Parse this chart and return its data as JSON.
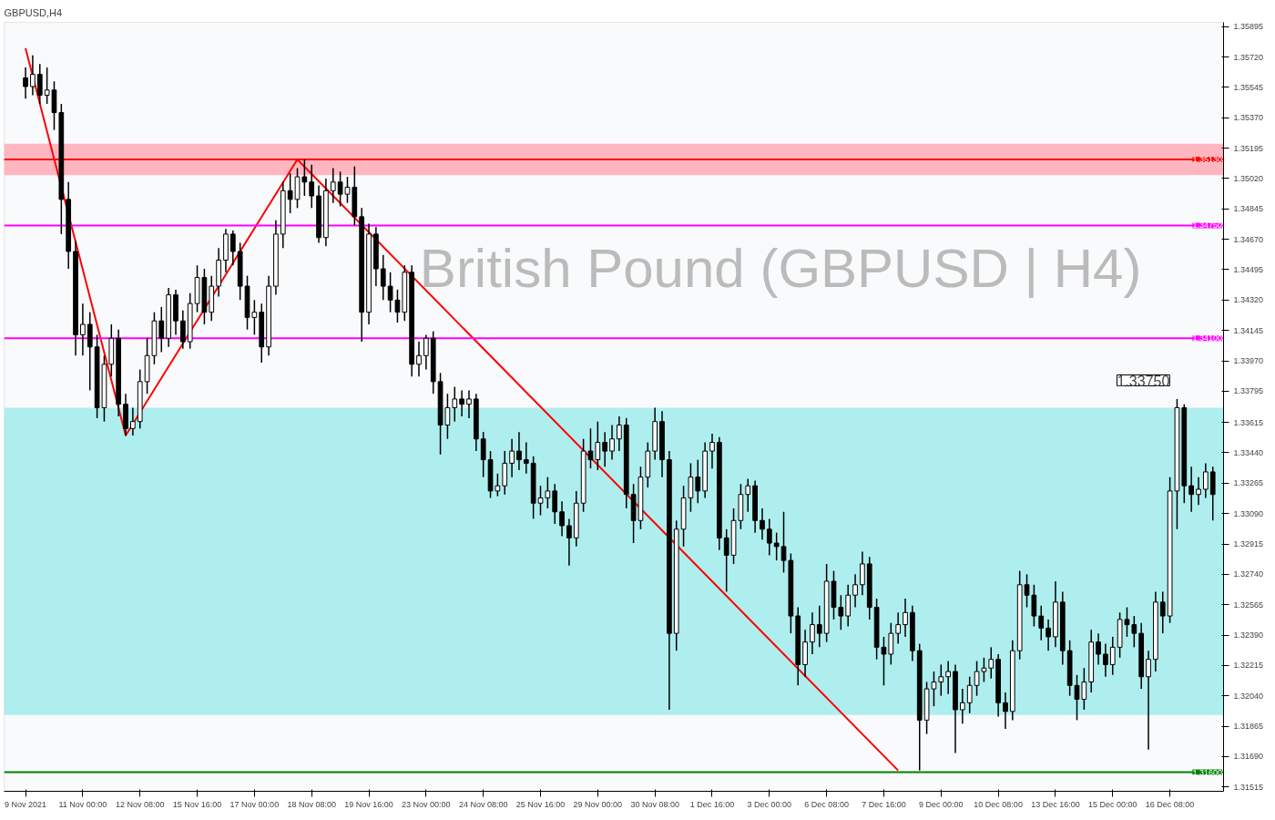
{
  "chart_data": {
    "type": "candlestick",
    "title": "GBPUSD,H4",
    "subtitle": "British Pound (GBPUSD | H4)",
    "categories": [
      "9 Nov 2021",
      null,
      null,
      null,
      null,
      null,
      null,
      null,
      "11 Nov 00:00",
      null,
      null,
      null,
      null,
      null,
      null,
      null,
      "12 Nov 08:00",
      null,
      null,
      null,
      null,
      null,
      null,
      null,
      "15 Nov 16:00",
      null,
      null,
      null,
      null,
      null,
      null,
      null,
      "17 Nov 00:00",
      null,
      null,
      null,
      null,
      null,
      null,
      null,
      "18 Nov 08:00",
      null,
      null,
      null,
      null,
      null,
      null,
      null,
      "19 Nov 16:00",
      null,
      null,
      null,
      null,
      null,
      null,
      null,
      "23 Nov 00:00",
      null,
      null,
      null,
      null,
      null,
      null,
      null,
      "24 Nov 08:00",
      null,
      null,
      null,
      null,
      null,
      null,
      null,
      "25 Nov 16:00",
      null,
      null,
      null,
      null,
      null,
      null,
      null,
      "29 Nov 00:00",
      null,
      null,
      null,
      null,
      null,
      null,
      null,
      "30 Nov 08:00",
      null,
      null,
      null,
      null,
      null,
      null,
      null,
      "1 Dec 16:00",
      null,
      null,
      null,
      null,
      null,
      null,
      null,
      "3 Dec 00:00",
      null,
      null,
      null,
      null,
      null,
      null,
      null,
      "6 Dec 08:00",
      null,
      null,
      null,
      null,
      null,
      null,
      null,
      "7 Dec 16:00",
      null,
      null,
      null,
      null,
      null,
      null,
      null,
      "9 Dec 00:00",
      null,
      null,
      null,
      null,
      null,
      null,
      null,
      "10 Dec 08:00",
      null,
      null,
      null,
      null,
      null,
      null,
      null,
      "13 Dec 16:00",
      null,
      null,
      null,
      null,
      null,
      null,
      null,
      "15 Dec 00:00",
      null,
      null,
      null,
      null,
      null,
      null,
      null,
      "16 Dec 08:00",
      null,
      null,
      null,
      null,
      null,
      null
    ],
    "ohlc": [
      [
        1.356,
        1.3566,
        1.3548,
        1.3555
      ],
      [
        1.3555,
        1.3573,
        1.355,
        1.3562
      ],
      [
        1.3562,
        1.3568,
        1.3545,
        1.355
      ],
      [
        1.355,
        1.3566,
        1.3545,
        1.3553
      ],
      [
        1.3553,
        1.3558,
        1.353,
        1.354
      ],
      [
        1.354,
        1.3545,
        1.347,
        1.349
      ],
      [
        1.349,
        1.35,
        1.345,
        1.346
      ],
      [
        1.346,
        1.3466,
        1.34,
        1.3412
      ],
      [
        1.3412,
        1.343,
        1.34,
        1.3418
      ],
      [
        1.3418,
        1.3425,
        1.338,
        1.3405
      ],
      [
        1.3405,
        1.3412,
        1.3364,
        1.337
      ],
      [
        1.337,
        1.34,
        1.3362,
        1.3395
      ],
      [
        1.3395,
        1.3418,
        1.3388,
        1.341
      ],
      [
        1.341,
        1.3415,
        1.3365,
        1.3372
      ],
      [
        1.3372,
        1.3378,
        1.3354,
        1.3358
      ],
      [
        1.3358,
        1.337,
        1.3354,
        1.3362
      ],
      [
        1.3362,
        1.3392,
        1.3358,
        1.3385
      ],
      [
        1.3385,
        1.341,
        1.3378,
        1.34
      ],
      [
        1.34,
        1.3425,
        1.3395,
        1.342
      ],
      [
        1.342,
        1.3428,
        1.3402,
        1.341
      ],
      [
        1.341,
        1.3439,
        1.3405,
        1.3435
      ],
      [
        1.3435,
        1.3438,
        1.3412,
        1.342
      ],
      [
        1.342,
        1.3426,
        1.3404,
        1.3408
      ],
      [
        1.3408,
        1.3436,
        1.3404,
        1.343
      ],
      [
        1.343,
        1.3452,
        1.3425,
        1.3445
      ],
      [
        1.3445,
        1.345,
        1.3418,
        1.3425
      ],
      [
        1.3425,
        1.3446,
        1.342,
        1.344
      ],
      [
        1.344,
        1.3462,
        1.3434,
        1.3455
      ],
      [
        1.3455,
        1.3473,
        1.3448,
        1.347
      ],
      [
        1.347,
        1.3472,
        1.3452,
        1.346
      ],
      [
        1.346,
        1.3465,
        1.3432,
        1.344
      ],
      [
        1.344,
        1.3446,
        1.3415,
        1.3422
      ],
      [
        1.3422,
        1.3432,
        1.3412,
        1.3425
      ],
      [
        1.3425,
        1.343,
        1.3396,
        1.3405
      ],
      [
        1.3405,
        1.3446,
        1.34,
        1.344
      ],
      [
        1.344,
        1.3478,
        1.3435,
        1.347
      ],
      [
        1.347,
        1.35,
        1.3462,
        1.3495
      ],
      [
        1.3495,
        1.3505,
        1.3482,
        1.349
      ],
      [
        1.349,
        1.3508,
        1.3485,
        1.3503
      ],
      [
        1.3503,
        1.3513,
        1.3492,
        1.35
      ],
      [
        1.35,
        1.351,
        1.3485,
        1.3492
      ],
      [
        1.3492,
        1.3498,
        1.3465,
        1.3468
      ],
      [
        1.3468,
        1.3502,
        1.3463,
        1.3495
      ],
      [
        1.3495,
        1.3508,
        1.3488,
        1.35
      ],
      [
        1.35,
        1.3506,
        1.3486,
        1.3493
      ],
      [
        1.3493,
        1.3503,
        1.3488,
        1.3497
      ],
      [
        1.3497,
        1.3509,
        1.3475,
        1.348
      ],
      [
        1.348,
        1.3485,
        1.3408,
        1.3425
      ],
      [
        1.3425,
        1.3476,
        1.3418,
        1.347
      ],
      [
        1.347,
        1.3474,
        1.344,
        1.345
      ],
      [
        1.345,
        1.3458,
        1.3432,
        1.344
      ],
      [
        1.344,
        1.3448,
        1.3425,
        1.3432
      ],
      [
        1.3432,
        1.3438,
        1.3419,
        1.3425
      ],
      [
        1.3425,
        1.3452,
        1.342,
        1.3448
      ],
      [
        1.3448,
        1.3452,
        1.3388,
        1.3395
      ],
      [
        1.3395,
        1.3408,
        1.3388,
        1.34
      ],
      [
        1.34,
        1.3412,
        1.3392,
        1.341
      ],
      [
        1.341,
        1.3414,
        1.3378,
        1.3385
      ],
      [
        1.3385,
        1.339,
        1.3343,
        1.336
      ],
      [
        1.336,
        1.3378,
        1.3352,
        1.337
      ],
      [
        1.337,
        1.3382,
        1.3362,
        1.3375
      ],
      [
        1.3375,
        1.338,
        1.3365,
        1.3372
      ],
      [
        1.3372,
        1.338,
        1.3364,
        1.3375
      ],
      [
        1.3375,
        1.3378,
        1.3345,
        1.3352
      ],
      [
        1.3352,
        1.3356,
        1.333,
        1.334
      ],
      [
        1.334,
        1.3345,
        1.3318,
        1.3322
      ],
      [
        1.3322,
        1.3332,
        1.3319,
        1.3325
      ],
      [
        1.3325,
        1.3345,
        1.332,
        1.3338
      ],
      [
        1.3338,
        1.3352,
        1.333,
        1.3345
      ],
      [
        1.3345,
        1.3356,
        1.3334,
        1.334
      ],
      [
        1.334,
        1.335,
        1.3332,
        1.3338
      ],
      [
        1.3338,
        1.3342,
        1.3306,
        1.3315
      ],
      [
        1.3315,
        1.3325,
        1.3308,
        1.3318
      ],
      [
        1.3318,
        1.333,
        1.3312,
        1.3322
      ],
      [
        1.3322,
        1.3326,
        1.3303,
        1.331
      ],
      [
        1.331,
        1.3316,
        1.3296,
        1.3302
      ],
      [
        1.3302,
        1.3306,
        1.3279,
        1.3295
      ],
      [
        1.3295,
        1.3322,
        1.329,
        1.3315
      ],
      [
        1.3315,
        1.3352,
        1.331,
        1.3345
      ],
      [
        1.3345,
        1.3358,
        1.3335,
        1.334
      ],
      [
        1.334,
        1.3362,
        1.3334,
        1.335
      ],
      [
        1.335,
        1.3356,
        1.3336,
        1.3345
      ],
      [
        1.3345,
        1.336,
        1.334,
        1.3352
      ],
      [
        1.3352,
        1.3365,
        1.3345,
        1.336
      ],
      [
        1.336,
        1.3364,
        1.3312,
        1.332
      ],
      [
        1.332,
        1.3326,
        1.3292,
        1.3305
      ],
      [
        1.3305,
        1.3336,
        1.33,
        1.333
      ],
      [
        1.333,
        1.335,
        1.3324,
        1.3345
      ],
      [
        1.3345,
        1.337,
        1.334,
        1.3362
      ],
      [
        1.3362,
        1.3368,
        1.333,
        1.334
      ],
      [
        1.334,
        1.3345,
        1.3196,
        1.324
      ],
      [
        1.324,
        1.3305,
        1.323,
        1.33
      ],
      [
        1.33,
        1.3325,
        1.329,
        1.3318
      ],
      [
        1.3318,
        1.3338,
        1.331,
        1.333
      ],
      [
        1.333,
        1.334,
        1.3315,
        1.3322
      ],
      [
        1.3322,
        1.335,
        1.3318,
        1.3345
      ],
      [
        1.3345,
        1.3355,
        1.3335,
        1.335
      ],
      [
        1.335,
        1.3353,
        1.3288,
        1.3295
      ],
      [
        1.3295,
        1.33,
        1.3264,
        1.3285
      ],
      [
        1.3285,
        1.3312,
        1.328,
        1.3305
      ],
      [
        1.3305,
        1.3326,
        1.33,
        1.332
      ],
      [
        1.332,
        1.3329,
        1.331,
        1.3325
      ],
      [
        1.3325,
        1.3328,
        1.3298,
        1.3305
      ],
      [
        1.3305,
        1.3312,
        1.3294,
        1.33
      ],
      [
        1.33,
        1.3306,
        1.3285,
        1.3292
      ],
      [
        1.3292,
        1.3298,
        1.3282,
        1.329
      ],
      [
        1.329,
        1.331,
        1.3275,
        1.3282
      ],
      [
        1.3282,
        1.3286,
        1.324,
        1.325
      ],
      [
        1.325,
        1.3255,
        1.321,
        1.3222
      ],
      [
        1.3222,
        1.3242,
        1.3215,
        1.3235
      ],
      [
        1.3235,
        1.3252,
        1.3228,
        1.3245
      ],
      [
        1.3245,
        1.3256,
        1.3232,
        1.324
      ],
      [
        1.324,
        1.328,
        1.3235,
        1.327
      ],
      [
        1.327,
        1.3276,
        1.3248,
        1.3255
      ],
      [
        1.3255,
        1.3262,
        1.3242,
        1.325
      ],
      [
        1.325,
        1.3268,
        1.3244,
        1.3262
      ],
      [
        1.3262,
        1.3274,
        1.3255,
        1.3268
      ],
      [
        1.3268,
        1.3287,
        1.3262,
        1.328
      ],
      [
        1.328,
        1.3284,
        1.3248,
        1.3255
      ],
      [
        1.3255,
        1.326,
        1.3225,
        1.3232
      ],
      [
        1.3232,
        1.3238,
        1.321,
        1.3228
      ],
      [
        1.3228,
        1.3246,
        1.3222,
        1.324
      ],
      [
        1.324,
        1.3252,
        1.3234,
        1.3245
      ],
      [
        1.3245,
        1.326,
        1.3238,
        1.3252
      ],
      [
        1.3252,
        1.3256,
        1.3224,
        1.323
      ],
      [
        1.323,
        1.3234,
        1.3161,
        1.319
      ],
      [
        1.319,
        1.3212,
        1.3182,
        1.3208
      ],
      [
        1.3208,
        1.3218,
        1.3198,
        1.3212
      ],
      [
        1.3212,
        1.3222,
        1.3204,
        1.3215
      ],
      [
        1.3215,
        1.3224,
        1.3205,
        1.3218
      ],
      [
        1.3218,
        1.3222,
        1.3171,
        1.3196
      ],
      [
        1.3196,
        1.3208,
        1.3188,
        1.32
      ],
      [
        1.32,
        1.3215,
        1.3194,
        1.321
      ],
      [
        1.321,
        1.3224,
        1.3204,
        1.3218
      ],
      [
        1.3218,
        1.3226,
        1.3212,
        1.322
      ],
      [
        1.322,
        1.3232,
        1.3214,
        1.3225
      ],
      [
        1.3225,
        1.3228,
        1.3192,
        1.32
      ],
      [
        1.32,
        1.3206,
        1.3185,
        1.3195
      ],
      [
        1.3195,
        1.3236,
        1.319,
        1.323
      ],
      [
        1.323,
        1.3276,
        1.3225,
        1.3268
      ],
      [
        1.3268,
        1.3274,
        1.3255,
        1.3262
      ],
      [
        1.3262,
        1.3268,
        1.3244,
        1.325
      ],
      [
        1.325,
        1.3256,
        1.3236,
        1.3243
      ],
      [
        1.3243,
        1.3248,
        1.323,
        1.3238
      ],
      [
        1.3238,
        1.327,
        1.3232,
        1.3258
      ],
      [
        1.3258,
        1.3264,
        1.3222,
        1.323
      ],
      [
        1.323,
        1.3236,
        1.3204,
        1.321
      ],
      [
        1.321,
        1.3216,
        1.319,
        1.3202
      ],
      [
        1.3202,
        1.322,
        1.3196,
        1.3212
      ],
      [
        1.3212,
        1.3242,
        1.3206,
        1.3235
      ],
      [
        1.3235,
        1.324,
        1.3222,
        1.3228
      ],
      [
        1.3228,
        1.3234,
        1.3215,
        1.3222
      ],
      [
        1.3222,
        1.3238,
        1.3216,
        1.3232
      ],
      [
        1.3232,
        1.3252,
        1.3226,
        1.3248
      ],
      [
        1.3248,
        1.3255,
        1.3238,
        1.3245
      ],
      [
        1.3245,
        1.325,
        1.3232,
        1.324
      ],
      [
        1.324,
        1.3246,
        1.3208,
        1.3215
      ],
      [
        1.3215,
        1.323,
        1.3173,
        1.3225
      ],
      [
        1.3225,
        1.3264,
        1.3218,
        1.3258
      ],
      [
        1.3258,
        1.3264,
        1.324,
        1.325
      ],
      [
        1.325,
        1.333,
        1.3246,
        1.3322
      ],
      [
        1.3322,
        1.3375,
        1.33,
        1.337
      ],
      [
        1.337,
        1.3372,
        1.3315,
        1.3325
      ],
      [
        1.3325,
        1.3336,
        1.331,
        1.332
      ],
      [
        1.332,
        1.333,
        1.3314,
        1.3323
      ],
      [
        1.3323,
        1.3338,
        1.3318,
        1.3333
      ],
      [
        1.3333,
        1.3336,
        1.3305,
        1.332
      ]
    ],
    "series": [
      {
        "type": "line",
        "color": "#ff0000",
        "values": [
          1.3577,
          null,
          null,
          null,
          null,
          null,
          null,
          null,
          null,
          null,
          null,
          null,
          null,
          null,
          1.3354,
          null,
          null,
          null,
          null,
          null,
          null,
          null,
          null,
          null,
          null,
          null,
          null,
          null,
          null,
          null,
          null,
          null,
          null,
          null,
          null,
          null,
          null,
          null,
          1.3513,
          null,
          null,
          null,
          null,
          null,
          null,
          null,
          null,
          null,
          null,
          null,
          null,
          null,
          null,
          null,
          null,
          null,
          null,
          null,
          null,
          null,
          null,
          null,
          null,
          null,
          null,
          null,
          null,
          null,
          null,
          null,
          null,
          null,
          null,
          null,
          null,
          null,
          null,
          null,
          null,
          null,
          null,
          null,
          null,
          null,
          null,
          null,
          null,
          null,
          null,
          null,
          null,
          null,
          null,
          null,
          null,
          null,
          null,
          null,
          null,
          null,
          null,
          null,
          null,
          null,
          null,
          null,
          null,
          null,
          null,
          null,
          null,
          null,
          null,
          null,
          null,
          null,
          null,
          null,
          null,
          null,
          null,
          null,
          1.3161,
          null,
          null,
          null,
          null,
          null,
          null,
          null,
          null,
          null,
          null,
          null,
          null,
          null,
          null,
          null,
          null,
          null,
          null,
          null,
          null,
          null,
          null,
          null,
          null,
          null,
          null,
          null,
          null,
          null,
          null,
          null,
          null,
          null,
          null,
          null,
          null,
          null,
          null,
          null,
          null,
          null,
          null,
          null,
          null
        ]
      }
    ],
    "ylim": [
      1.3149,
      1.3592
    ],
    "yticks": [
      {
        "value": 1.31515,
        "label": "1.31515"
      },
      {
        "value": 1.3169,
        "label": "1.31690"
      },
      {
        "value": 1.31865,
        "label": "1.31865"
      },
      {
        "value": 1.3204,
        "label": "1.32040"
      },
      {
        "value": 1.32215,
        "label": "1.32215"
      },
      {
        "value": 1.3239,
        "label": "1.32390"
      },
      {
        "value": 1.32565,
        "label": "1.32565"
      },
      {
        "value": 1.3274,
        "label": "1.32740"
      },
      {
        "value": 1.32915,
        "label": "1.32915"
      },
      {
        "value": 1.3309,
        "label": "1.33090"
      },
      {
        "value": 1.33265,
        "label": "1.33265"
      },
      {
        "value": 1.3344,
        "label": "1.33440"
      },
      {
        "value": 1.33615,
        "label": "1.33615"
      },
      {
        "value": 1.33795,
        "label": "1.33795"
      },
      {
        "value": 1.3397,
        "label": "1.33970"
      },
      {
        "value": 1.34145,
        "label": "1.34145"
      },
      {
        "value": 1.3432,
        "label": "1.34320"
      },
      {
        "value": 1.34495,
        "label": "1.34495"
      },
      {
        "value": 1.3467,
        "label": "1.34670"
      },
      {
        "value": 1.34845,
        "label": "1.34845"
      },
      {
        "value": 1.3502,
        "label": "1.35020"
      },
      {
        "value": 1.35195,
        "label": "1.35195"
      },
      {
        "value": 1.3537,
        "label": "1.35370"
      },
      {
        "value": 1.35545,
        "label": "1.35545"
      },
      {
        "value": 1.3572,
        "label": "1.35720"
      },
      {
        "value": 1.35895,
        "label": "1.35895"
      }
    ],
    "ref_lines": [
      {
        "axis": "y",
        "value": 1.3513,
        "label": "1.35130",
        "color": "#ff0000"
      },
      {
        "axis": "y",
        "value": 1.3475,
        "label": "1.34750",
        "color": "#ff00ff"
      },
      {
        "axis": "y",
        "value": 1.341,
        "label": "1.34100",
        "color": "#ff00ff"
      },
      {
        "axis": "y",
        "value": 1.316,
        "label": "1.31600",
        "color": "#008000"
      }
    ],
    "bands": [
      {
        "axis": "y",
        "from": 1.3504,
        "to": 1.3522,
        "color": "#ffb6c1"
      },
      {
        "axis": "y",
        "from": 1.3193,
        "to": 1.337,
        "color": "#afeeee"
      }
    ],
    "annotations": [
      "1.33750"
    ],
    "grid": false
  }
}
